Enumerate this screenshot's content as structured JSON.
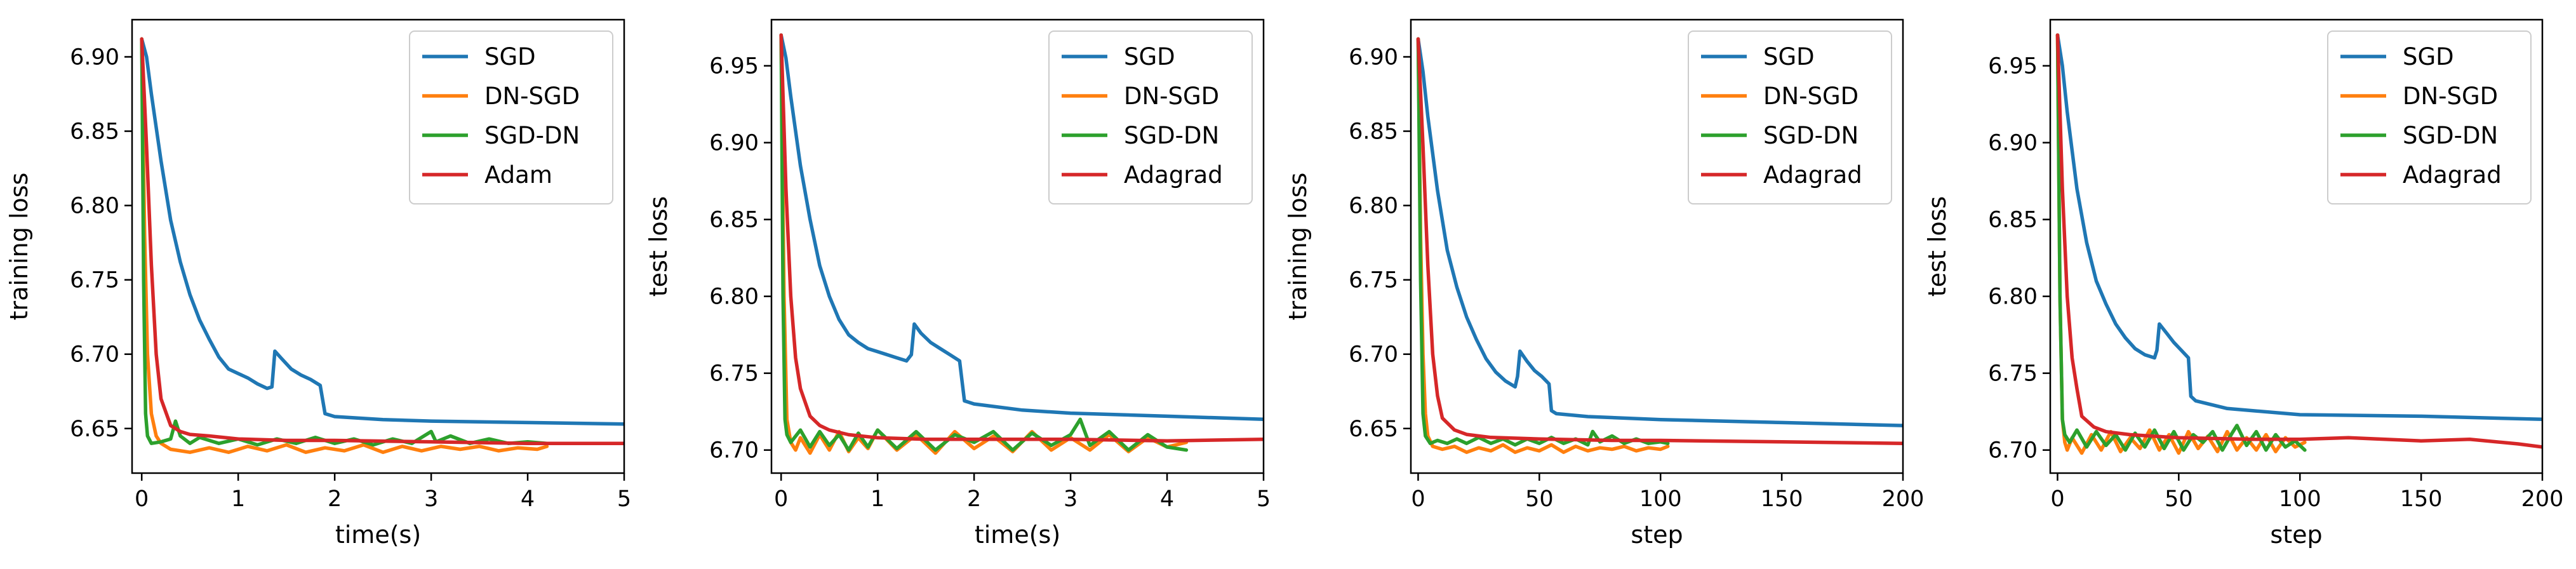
{
  "colors": {
    "SGD": "#1f77b4",
    "DN-SGD": "#ff7f0e",
    "SGD-DN": "#2ca02c",
    "Adam": "#d62728",
    "Adagrad": "#d62728"
  },
  "chart_data": [
    {
      "type": "line",
      "title": "",
      "xlabel": "time(s)",
      "ylabel": "training loss",
      "xlim": [
        -0.1,
        5
      ],
      "ylim": [
        6.62,
        6.925
      ],
      "xticks": [
        0,
        1,
        2,
        3,
        4,
        5
      ],
      "yticks": [
        6.65,
        6.7,
        6.75,
        6.8,
        6.85,
        6.9
      ],
      "ytick_labels": [
        "6.65",
        "6.70",
        "6.75",
        "6.80",
        "6.85",
        "6.90"
      ],
      "legend": "top-right",
      "grid": false,
      "series": [
        {
          "name": "SGD",
          "x": [
            0,
            0.05,
            0.1,
            0.2,
            0.3,
            0.4,
            0.5,
            0.6,
            0.7,
            0.8,
            0.9,
            1.0,
            1.1,
            1.2,
            1.3,
            1.35,
            1.38,
            1.45,
            1.55,
            1.65,
            1.75,
            1.85,
            1.9,
            2.0,
            2.5,
            3.0,
            4.0,
            5.0
          ],
          "y": [
            6.912,
            6.9,
            6.875,
            6.83,
            6.79,
            6.762,
            6.74,
            6.723,
            6.71,
            6.698,
            6.69,
            6.687,
            6.684,
            6.68,
            6.677,
            6.678,
            6.702,
            6.697,
            6.69,
            6.686,
            6.683,
            6.679,
            6.66,
            6.658,
            6.656,
            6.655,
            6.654,
            6.653
          ]
        },
        {
          "name": "DN-SGD",
          "x": [
            0,
            0.03,
            0.06,
            0.1,
            0.15,
            0.2,
            0.3,
            0.5,
            0.7,
            0.9,
            1.1,
            1.3,
            1.5,
            1.7,
            1.9,
            2.1,
            2.3,
            2.5,
            2.7,
            2.9,
            3.1,
            3.3,
            3.5,
            3.7,
            3.9,
            4.1,
            4.2
          ],
          "y": [
            6.912,
            6.78,
            6.7,
            6.66,
            6.645,
            6.64,
            6.636,
            6.634,
            6.637,
            6.634,
            6.638,
            6.635,
            6.639,
            6.634,
            6.637,
            6.635,
            6.639,
            6.634,
            6.638,
            6.635,
            6.638,
            6.636,
            6.638,
            6.635,
            6.637,
            6.636,
            6.638
          ]
        },
        {
          "name": "SGD-DN",
          "x": [
            0,
            0.02,
            0.04,
            0.06,
            0.1,
            0.2,
            0.3,
            0.35,
            0.4,
            0.5,
            0.6,
            0.8,
            1.0,
            1.2,
            1.4,
            1.6,
            1.8,
            2.0,
            2.2,
            2.4,
            2.6,
            2.8,
            3.0,
            3.05,
            3.2,
            3.4,
            3.6,
            3.8,
            4.0,
            4.2
          ],
          "y": [
            6.912,
            6.75,
            6.66,
            6.645,
            6.64,
            6.641,
            6.643,
            6.655,
            6.645,
            6.64,
            6.644,
            6.64,
            6.643,
            6.639,
            6.643,
            6.64,
            6.644,
            6.64,
            6.643,
            6.639,
            6.643,
            6.64,
            6.648,
            6.641,
            6.645,
            6.64,
            6.643,
            6.64,
            6.641,
            6.64
          ]
        },
        {
          "name": "Adam",
          "x": [
            0,
            0.05,
            0.1,
            0.15,
            0.2,
            0.3,
            0.4,
            0.5,
            0.7,
            1.0,
            1.5,
            2.0,
            3.0,
            4.0,
            5.0
          ],
          "y": [
            6.912,
            6.84,
            6.76,
            6.7,
            6.67,
            6.652,
            6.648,
            6.646,
            6.645,
            6.643,
            6.642,
            6.642,
            6.641,
            6.64,
            6.64
          ]
        }
      ]
    },
    {
      "type": "line",
      "title": "",
      "xlabel": "time(s)",
      "ylabel": "test loss",
      "xlim": [
        -0.1,
        5
      ],
      "ylim": [
        6.685,
        6.98
      ],
      "xticks": [
        0,
        1,
        2,
        3,
        4,
        5
      ],
      "yticks": [
        6.7,
        6.75,
        6.8,
        6.85,
        6.9,
        6.95
      ],
      "ytick_labels": [
        "6.70",
        "6.75",
        "6.80",
        "6.85",
        "6.90",
        "6.95"
      ],
      "legend": "top-right",
      "grid": false,
      "series": [
        {
          "name": "SGD",
          "x": [
            0,
            0.05,
            0.1,
            0.2,
            0.3,
            0.4,
            0.5,
            0.6,
            0.7,
            0.8,
            0.9,
            1.0,
            1.1,
            1.2,
            1.3,
            1.35,
            1.38,
            1.45,
            1.55,
            1.65,
            1.75,
            1.85,
            1.9,
            2.0,
            2.5,
            3.0,
            4.0,
            5.0
          ],
          "y": [
            6.97,
            6.955,
            6.93,
            6.885,
            6.85,
            6.82,
            6.8,
            6.785,
            6.775,
            6.77,
            6.766,
            6.764,
            6.762,
            6.76,
            6.758,
            6.762,
            6.782,
            6.776,
            6.77,
            6.766,
            6.762,
            6.758,
            6.732,
            6.73,
            6.726,
            6.724,
            6.722,
            6.72
          ]
        },
        {
          "name": "DN-SGD",
          "x": [
            0,
            0.03,
            0.06,
            0.1,
            0.15,
            0.2,
            0.3,
            0.4,
            0.5,
            0.6,
            0.7,
            0.8,
            0.9,
            1.0,
            1.2,
            1.4,
            1.6,
            1.8,
            2.0,
            2.2,
            2.4,
            2.6,
            2.8,
            3.0,
            3.2,
            3.4,
            3.6,
            3.8,
            4.0,
            4.2
          ],
          "y": [
            6.97,
            6.8,
            6.72,
            6.705,
            6.7,
            6.708,
            6.698,
            6.71,
            6.7,
            6.712,
            6.699,
            6.708,
            6.701,
            6.713,
            6.7,
            6.71,
            6.698,
            6.712,
            6.701,
            6.709,
            6.699,
            6.712,
            6.7,
            6.708,
            6.7,
            6.71,
            6.699,
            6.708,
            6.702,
            6.705
          ]
        },
        {
          "name": "SGD-DN",
          "x": [
            0,
            0.02,
            0.04,
            0.06,
            0.1,
            0.2,
            0.3,
            0.4,
            0.5,
            0.6,
            0.7,
            0.8,
            0.9,
            1.0,
            1.2,
            1.4,
            1.6,
            1.8,
            2.0,
            2.2,
            2.4,
            2.6,
            2.8,
            3.0,
            3.1,
            3.2,
            3.4,
            3.6,
            3.8,
            4.0,
            4.2
          ],
          "y": [
            6.97,
            6.8,
            6.72,
            6.71,
            6.705,
            6.713,
            6.702,
            6.712,
            6.703,
            6.71,
            6.7,
            6.711,
            6.702,
            6.713,
            6.701,
            6.712,
            6.7,
            6.71,
            6.705,
            6.712,
            6.7,
            6.711,
            6.703,
            6.71,
            6.72,
            6.703,
            6.712,
            6.7,
            6.71,
            6.702,
            6.7
          ]
        },
        {
          "name": "Adagrad",
          "x": [
            0,
            0.05,
            0.1,
            0.15,
            0.2,
            0.3,
            0.4,
            0.5,
            0.7,
            1.0,
            1.5,
            2.0,
            3.0,
            4.0,
            5.0
          ],
          "y": [
            6.97,
            6.87,
            6.8,
            6.76,
            6.74,
            6.722,
            6.716,
            6.713,
            6.71,
            6.708,
            6.707,
            6.707,
            6.707,
            6.706,
            6.707
          ]
        }
      ]
    },
    {
      "type": "line",
      "title": "",
      "xlabel": "step",
      "ylabel": "training loss",
      "xlim": [
        -3,
        200
      ],
      "ylim": [
        6.62,
        6.925
      ],
      "xticks": [
        0,
        50,
        100,
        150,
        200
      ],
      "yticks": [
        6.65,
        6.7,
        6.75,
        6.8,
        6.85,
        6.9
      ],
      "ytick_labels": [
        "6.65",
        "6.70",
        "6.75",
        "6.80",
        "6.85",
        "6.90"
      ],
      "legend": "top-right",
      "grid": false,
      "series": [
        {
          "name": "SGD",
          "x": [
            0,
            2,
            4,
            8,
            12,
            16,
            20,
            24,
            28,
            32,
            36,
            40,
            41,
            42,
            45,
            48,
            51,
            54,
            55,
            57,
            70,
            100,
            150,
            200
          ],
          "y": [
            6.912,
            6.89,
            6.86,
            6.81,
            6.77,
            6.745,
            6.725,
            6.71,
            6.697,
            6.688,
            6.682,
            6.678,
            6.685,
            6.702,
            6.695,
            6.689,
            6.685,
            6.68,
            6.662,
            6.66,
            6.658,
            6.656,
            6.654,
            6.652
          ]
        },
        {
          "name": "DN-SGD",
          "x": [
            0,
            1,
            2,
            3,
            4,
            6,
            10,
            15,
            20,
            25,
            30,
            35,
            40,
            45,
            50,
            55,
            60,
            65,
            70,
            75,
            80,
            85,
            90,
            95,
            100,
            103
          ],
          "y": [
            6.912,
            6.78,
            6.7,
            6.66,
            6.645,
            6.638,
            6.636,
            6.638,
            6.634,
            6.637,
            6.635,
            6.639,
            6.634,
            6.637,
            6.635,
            6.639,
            6.634,
            6.638,
            6.635,
            6.637,
            6.636,
            6.638,
            6.635,
            6.637,
            6.636,
            6.638
          ]
        },
        {
          "name": "SGD-DN",
          "x": [
            0,
            1,
            2,
            3,
            5,
            8,
            12,
            16,
            20,
            25,
            30,
            35,
            40,
            45,
            50,
            55,
            60,
            65,
            70,
            72,
            75,
            80,
            85,
            90,
            95,
            100,
            103
          ],
          "y": [
            6.912,
            6.75,
            6.66,
            6.645,
            6.64,
            6.642,
            6.64,
            6.643,
            6.64,
            6.644,
            6.64,
            6.643,
            6.639,
            6.643,
            6.64,
            6.644,
            6.64,
            6.643,
            6.639,
            6.648,
            6.641,
            6.645,
            6.64,
            6.643,
            6.64,
            6.641,
            6.64
          ]
        },
        {
          "name": "Adagrad",
          "x": [
            0,
            2,
            4,
            6,
            8,
            10,
            15,
            20,
            30,
            50,
            80,
            100,
            150,
            200
          ],
          "y": [
            6.912,
            6.84,
            6.76,
            6.7,
            6.672,
            6.657,
            6.649,
            6.646,
            6.644,
            6.643,
            6.642,
            6.642,
            6.641,
            6.64
          ]
        }
      ]
    },
    {
      "type": "line",
      "title": "",
      "xlabel": "step",
      "ylabel": "test loss",
      "xlim": [
        -3,
        200
      ],
      "ylim": [
        6.685,
        6.98
      ],
      "xticks": [
        0,
        50,
        100,
        150,
        200
      ],
      "yticks": [
        6.7,
        6.75,
        6.8,
        6.85,
        6.9,
        6.95
      ],
      "ytick_labels": [
        "6.70",
        "6.75",
        "6.80",
        "6.85",
        "6.90",
        "6.95"
      ],
      "legend": "top-right",
      "grid": false,
      "series": [
        {
          "name": "SGD",
          "x": [
            0,
            2,
            4,
            8,
            12,
            16,
            20,
            24,
            28,
            32,
            36,
            40,
            41,
            42,
            45,
            48,
            51,
            54,
            55,
            57,
            70,
            100,
            150,
            200
          ],
          "y": [
            6.97,
            6.95,
            6.92,
            6.87,
            6.835,
            6.81,
            6.795,
            6.782,
            6.773,
            6.766,
            6.762,
            6.76,
            6.765,
            6.782,
            6.776,
            6.77,
            6.765,
            6.76,
            6.735,
            6.732,
            6.727,
            6.723,
            6.722,
            6.72
          ]
        },
        {
          "name": "DN-SGD",
          "x": [
            0,
            1,
            2,
            3,
            4,
            6,
            10,
            14,
            18,
            22,
            26,
            30,
            34,
            38,
            42,
            46,
            50,
            54,
            58,
            62,
            66,
            70,
            74,
            78,
            82,
            86,
            90,
            94,
            98,
            102
          ],
          "y": [
            6.97,
            6.8,
            6.72,
            6.705,
            6.7,
            6.708,
            6.698,
            6.71,
            6.7,
            6.712,
            6.699,
            6.708,
            6.701,
            6.713,
            6.7,
            6.71,
            6.698,
            6.712,
            6.701,
            6.709,
            6.699,
            6.712,
            6.7,
            6.708,
            6.7,
            6.71,
            6.699,
            6.708,
            6.702,
            6.705
          ]
        },
        {
          "name": "SGD-DN",
          "x": [
            0,
            1,
            2,
            3,
            5,
            8,
            12,
            16,
            20,
            24,
            28,
            32,
            36,
            40,
            44,
            48,
            52,
            56,
            60,
            64,
            68,
            72,
            74,
            78,
            82,
            86,
            90,
            94,
            98,
            102
          ],
          "y": [
            6.97,
            6.8,
            6.72,
            6.71,
            6.705,
            6.713,
            6.702,
            6.712,
            6.703,
            6.71,
            6.7,
            6.711,
            6.702,
            6.713,
            6.701,
            6.712,
            6.7,
            6.71,
            6.705,
            6.712,
            6.7,
            6.711,
            6.716,
            6.703,
            6.712,
            6.7,
            6.71,
            6.702,
            6.706,
            6.7
          ]
        },
        {
          "name": "Adagrad",
          "x": [
            0,
            2,
            4,
            6,
            8,
            10,
            15,
            20,
            30,
            50,
            80,
            100,
            120,
            150,
            170,
            190,
            200
          ],
          "y": [
            6.97,
            6.87,
            6.8,
            6.76,
            6.74,
            6.722,
            6.715,
            6.712,
            6.71,
            6.708,
            6.707,
            6.707,
            6.708,
            6.706,
            6.707,
            6.704,
            6.702
          ]
        }
      ]
    }
  ]
}
